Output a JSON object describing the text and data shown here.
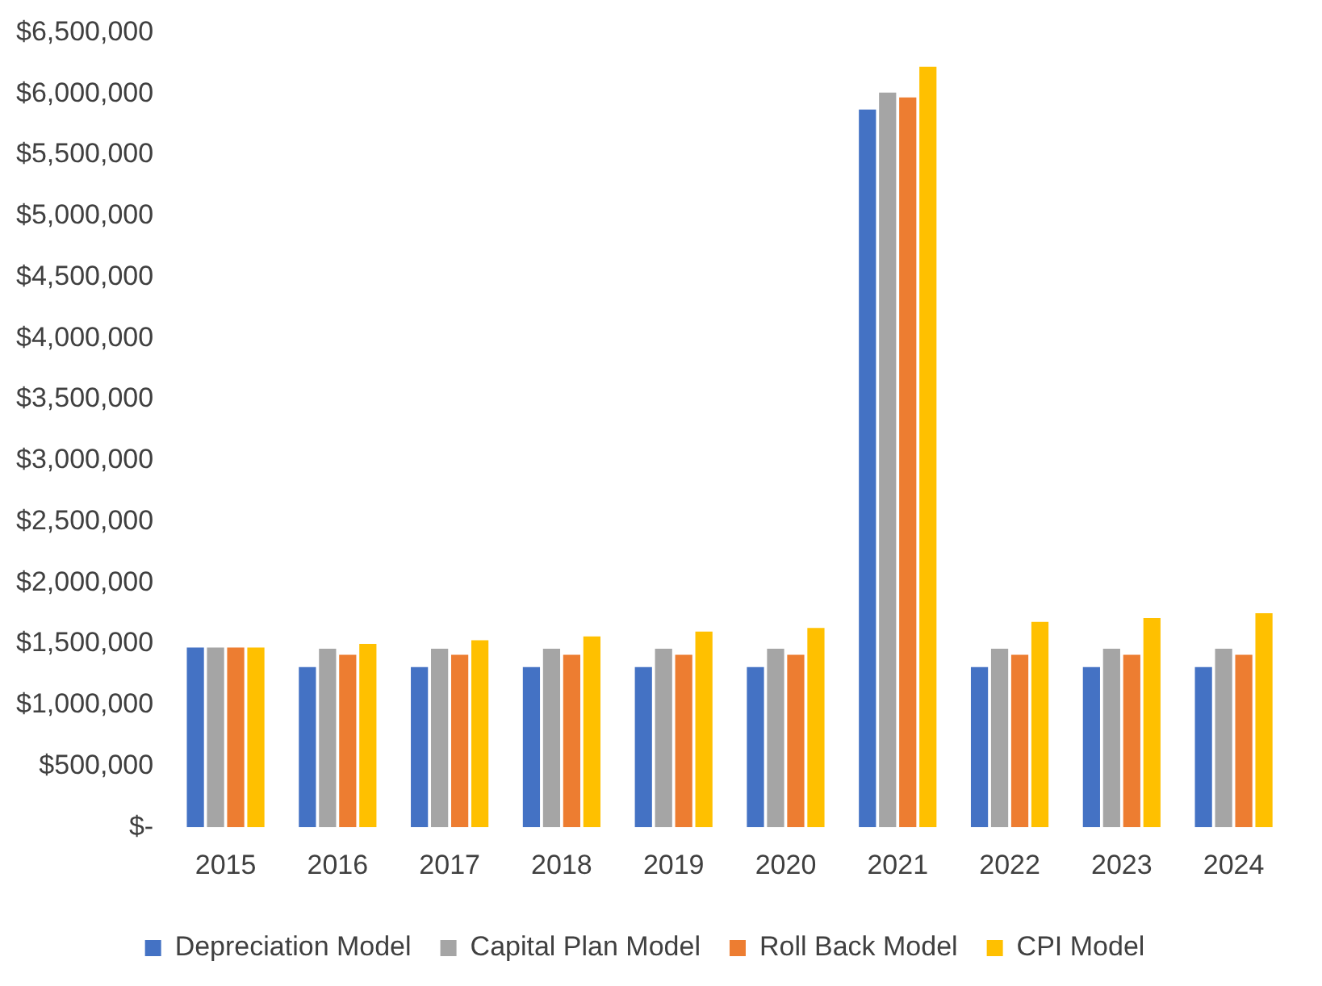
{
  "chart_data": {
    "type": "bar",
    "categories": [
      "2015",
      "2016",
      "2017",
      "2018",
      "2019",
      "2020",
      "2021",
      "2022",
      "2023",
      "2024"
    ],
    "series": [
      {
        "name": "Depreciation Model",
        "color": "#4472c4",
        "values": [
          1470000,
          1310000,
          1310000,
          1310000,
          1310000,
          1310000,
          5870000,
          1310000,
          1310000,
          1310000
        ]
      },
      {
        "name": "Capital Plan Model",
        "color": "#a5a5a5",
        "values": [
          1470000,
          1460000,
          1460000,
          1460000,
          1460000,
          1460000,
          6010000,
          1460000,
          1460000,
          1460000
        ]
      },
      {
        "name": "Roll Back Model",
        "color": "#ed7d31",
        "values": [
          1470000,
          1410000,
          1410000,
          1410000,
          1410000,
          1410000,
          5970000,
          1410000,
          1410000,
          1410000
        ]
      },
      {
        "name": "CPI Model",
        "color": "#ffc000",
        "values": [
          1470000,
          1500000,
          1530000,
          1560000,
          1600000,
          1630000,
          6220000,
          1680000,
          1710000,
          1750000
        ]
      }
    ],
    "ylim": [
      0,
      6500000
    ],
    "yticks": [
      {
        "value": 0,
        "label": "$-"
      },
      {
        "value": 500000,
        "label": "$500,000"
      },
      {
        "value": 1000000,
        "label": "$1,000,000"
      },
      {
        "value": 1500000,
        "label": "$1,500,000"
      },
      {
        "value": 2000000,
        "label": "$2,000,000"
      },
      {
        "value": 2500000,
        "label": "$2,500,000"
      },
      {
        "value": 3000000,
        "label": "$3,000,000"
      },
      {
        "value": 3500000,
        "label": "$3,500,000"
      },
      {
        "value": 4000000,
        "label": "$4,000,000"
      },
      {
        "value": 4500000,
        "label": "$4,500,000"
      },
      {
        "value": 5000000,
        "label": "$5,000,000"
      },
      {
        "value": 5500000,
        "label": "$5,500,000"
      },
      {
        "value": 6000000,
        "label": "$6,000,000"
      },
      {
        "value": 6500000,
        "label": "$6,500,000"
      }
    ],
    "grid": false,
    "legend": "bottom"
  }
}
